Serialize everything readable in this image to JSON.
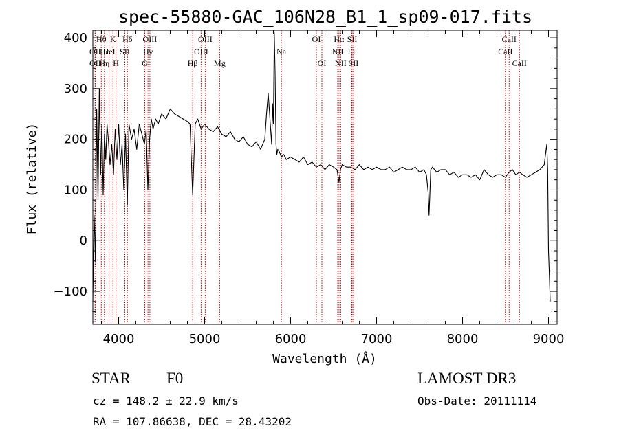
{
  "chart_data": {
    "type": "line",
    "title": "spec-55880-GAC_106N28_B1_1_sp09-017.fits",
    "xlabel": "Wavelength (Å)",
    "ylabel": "Flux (relative)",
    "xlim": [
      3700,
      9100
    ],
    "ylim": [
      -165,
      415
    ],
    "x_ticks": [
      4000,
      5000,
      6000,
      7000,
      8000,
      9000
    ],
    "y_ticks": [
      -100,
      0,
      100,
      200,
      300,
      400
    ],
    "x_minor_step": 200,
    "y_minor_step": 20,
    "grid": false,
    "line_color": "#000000",
    "marker_color": "#cc0000",
    "series": [
      {
        "x": [
          3700,
          3715,
          3730,
          3745,
          3760,
          3775,
          3790,
          3805,
          3820,
          3835,
          3850,
          3865,
          3880,
          3900,
          3920,
          3940,
          3960,
          3980,
          4000,
          4020,
          4040,
          4060,
          4080,
          4101,
          4120,
          4150,
          4180,
          4210,
          4240,
          4270,
          4300,
          4320,
          4340,
          4360,
          4380,
          4400,
          4430,
          4460,
          4500,
          4550,
          4600,
          4650,
          4700,
          4750,
          4800,
          4830,
          4861,
          4890,
          4920,
          4960,
          5000,
          5050,
          5100,
          5150,
          5200,
          5250,
          5300,
          5350,
          5400,
          5450,
          5500,
          5550,
          5600,
          5650,
          5700,
          5720,
          5740,
          5760,
          5780,
          5790,
          5800,
          5810,
          5820,
          5830,
          5840,
          5850,
          5870,
          5893,
          5920,
          5950,
          6000,
          6050,
          6100,
          6150,
          6200,
          6250,
          6300,
          6350,
          6400,
          6450,
          6500,
          6540,
          6563,
          6580,
          6600,
          6650,
          6700,
          6750,
          6800,
          6850,
          6900,
          6950,
          7000,
          7050,
          7100,
          7150,
          7200,
          7250,
          7300,
          7350,
          7400,
          7450,
          7500,
          7550,
          7580,
          7600,
          7610,
          7620,
          7630,
          7650,
          7700,
          7750,
          7800,
          7850,
          7900,
          7950,
          8000,
          8050,
          8100,
          8150,
          8200,
          8250,
          8300,
          8350,
          8400,
          8450,
          8498,
          8542,
          8580,
          8620,
          8662,
          8700,
          8750,
          8800,
          8850,
          8900,
          8950,
          8980,
          8990,
          9000,
          9010,
          9020
        ],
        "y": [
          -120,
          50,
          -40,
          260,
          80,
          300,
          130,
          230,
          90,
          210,
          160,
          230,
          200,
          150,
          190,
          130,
          220,
          160,
          230,
          150,
          190,
          100,
          210,
          70,
          230,
          200,
          220,
          180,
          230,
          210,
          190,
          220,
          100,
          200,
          240,
          220,
          240,
          230,
          250,
          240,
          260,
          250,
          245,
          240,
          235,
          230,
          90,
          230,
          240,
          220,
          230,
          220,
          215,
          225,
          210,
          205,
          215,
          200,
          195,
          205,
          190,
          185,
          195,
          180,
          200,
          250,
          290,
          240,
          190,
          270,
          230,
          410,
          330,
          190,
          170,
          180,
          175,
          165,
          170,
          160,
          165,
          160,
          155,
          165,
          150,
          155,
          145,
          150,
          140,
          150,
          145,
          140,
          115,
          140,
          150,
          145,
          145,
          140,
          150,
          140,
          145,
          140,
          145,
          140,
          140,
          145,
          135,
          140,
          145,
          140,
          140,
          145,
          135,
          140,
          130,
          95,
          50,
          90,
          140,
          145,
          135,
          140,
          140,
          130,
          135,
          125,
          130,
          130,
          125,
          130,
          120,
          140,
          130,
          125,
          130,
          130,
          125,
          135,
          140,
          130,
          135,
          130,
          125,
          130,
          135,
          140,
          150,
          190,
          140,
          -20,
          -70,
          -120
        ]
      }
    ],
    "line_markers": [
      {
        "wavelength": 3727,
        "label": "OII",
        "row": 1
      },
      {
        "wavelength": 3727,
        "label": "OII",
        "row": 2
      },
      {
        "wavelength": 3798,
        "label": "Hθ",
        "row": 0
      },
      {
        "wavelength": 3835,
        "label": "Hε",
        "row": 1
      },
      {
        "wavelength": 3835,
        "label": "Hη",
        "row": 2
      },
      {
        "wavelength": 3889,
        "label": "HeI",
        "row": 1
      },
      {
        "wavelength": 3934,
        "label": "K",
        "row": 0
      },
      {
        "wavelength": 3969,
        "label": "H",
        "row": 2
      },
      {
        "wavelength": 4072,
        "label": "SII",
        "row": 1
      },
      {
        "wavelength": 4102,
        "label": "Hδ",
        "row": 0
      },
      {
        "wavelength": 4304,
        "label": "G",
        "row": 2
      },
      {
        "wavelength": 4341,
        "label": "Hγ",
        "row": 1
      },
      {
        "wavelength": 4363,
        "label": "OIII",
        "row": 0
      },
      {
        "wavelength": 4861,
        "label": "Hβ",
        "row": 2
      },
      {
        "wavelength": 4959,
        "label": "OIII",
        "row": 1
      },
      {
        "wavelength": 5007,
        "label": "OIII",
        "row": 0
      },
      {
        "wavelength": 5175,
        "label": "Mg",
        "row": 2
      },
      {
        "wavelength": 5893,
        "label": "Na",
        "row": 1
      },
      {
        "wavelength": 6300,
        "label": "OI",
        "row": 0
      },
      {
        "wavelength": 6364,
        "label": "OI",
        "row": 2
      },
      {
        "wavelength": 6548,
        "label": "NII",
        "row": 1
      },
      {
        "wavelength": 6563,
        "label": "Hα",
        "row": 0
      },
      {
        "wavelength": 6583,
        "label": "NII",
        "row": 2
      },
      {
        "wavelength": 6708,
        "label": "Li",
        "row": 1
      },
      {
        "wavelength": 6716,
        "label": "SII",
        "row": 0
      },
      {
        "wavelength": 6731,
        "label": "SII",
        "row": 2
      },
      {
        "wavelength": 8498,
        "label": "CaII",
        "row": 1
      },
      {
        "wavelength": 8542,
        "label": "CaII",
        "row": 0
      },
      {
        "wavelength": 8662,
        "label": "CaII",
        "row": 2
      }
    ]
  },
  "info": {
    "object_class": "STAR",
    "subclass": "F0",
    "survey": "LAMOST DR3",
    "redshift": "cz = 148.2 ± 22.9 km/s",
    "obs_date": "Obs-Date: 20111114",
    "coords": "RA = 107.86638, DEC =  28.43202"
  }
}
